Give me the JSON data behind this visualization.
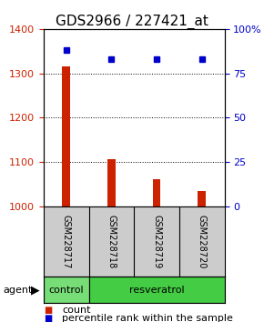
{
  "title": "GDS2966 / 227421_at",
  "samples": [
    "GSM228717",
    "GSM228718",
    "GSM228719",
    "GSM228720"
  ],
  "counts": [
    1315,
    1105,
    1060,
    1035
  ],
  "percentiles": [
    88,
    83,
    83,
    83
  ],
  "ylim_left": [
    1000,
    1400
  ],
  "ylim_right": [
    0,
    100
  ],
  "yticks_left": [
    1000,
    1100,
    1200,
    1300,
    1400
  ],
  "yticks_right": [
    0,
    25,
    50,
    75,
    100
  ],
  "bar_color": "#cc2200",
  "dot_color": "#0000cc",
  "bar_width": 0.18,
  "groups": [
    {
      "label": "control",
      "samples": [
        0
      ],
      "color": "#77dd77"
    },
    {
      "label": "resveratrol",
      "samples": [
        1,
        2,
        3
      ],
      "color": "#44cc44"
    }
  ],
  "agent_label": "agent",
  "bg_color": "#ffffff",
  "sample_box_color": "#cccccc",
  "title_fontsize": 11,
  "tick_fontsize": 8,
  "sample_fontsize": 7,
  "group_fontsize": 8,
  "legend_fontsize": 8
}
